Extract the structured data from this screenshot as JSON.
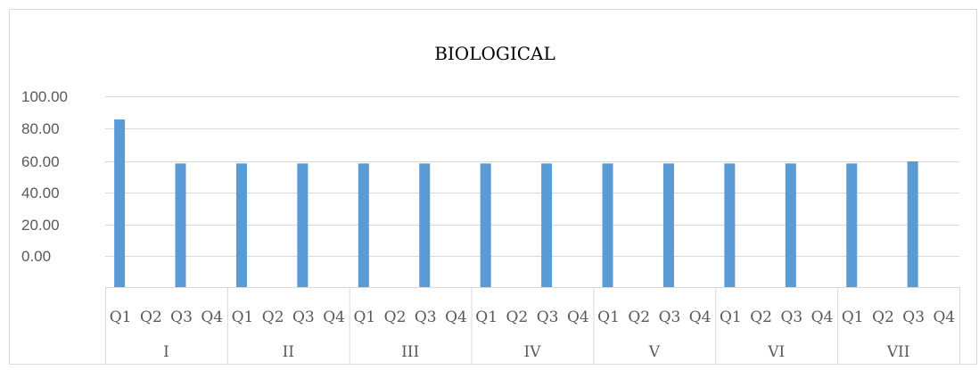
{
  "chart_data": {
    "type": "bar",
    "title": "BIOLOGICAL",
    "xlabel": "",
    "ylabel": "",
    "y_tick_labels": [
      "100.00",
      "80.00",
      "60.00",
      "40.00",
      "20.00",
      "0.00"
    ],
    "groups": [
      {
        "label": "I",
        "quarters": [
          "Q1",
          "Q2",
          "Q3",
          "Q4"
        ]
      },
      {
        "label": "II",
        "quarters": [
          "Q1",
          "Q2",
          "Q3",
          "Q4"
        ]
      },
      {
        "label": "III",
        "quarters": [
          "Q1",
          "Q2",
          "Q3",
          "Q4"
        ]
      },
      {
        "label": "IV",
        "quarters": [
          "Q1",
          "Q2",
          "Q3",
          "Q4"
        ]
      },
      {
        "label": "V",
        "quarters": [
          "Q1",
          "Q2",
          "Q3",
          "Q4"
        ]
      },
      {
        "label": "VI",
        "quarters": [
          "Q1",
          "Q2",
          "Q3",
          "Q4"
        ]
      },
      {
        "label": "VII",
        "quarters": [
          "Q1",
          "Q2",
          "Q3",
          "Q4"
        ]
      }
    ],
    "values": [
      [
        80,
        null,
        59,
        null
      ],
      [
        59,
        null,
        59,
        null
      ],
      [
        59,
        null,
        59,
        null
      ],
      [
        59,
        null,
        59,
        null
      ],
      [
        59,
        null,
        59,
        null
      ],
      [
        59,
        null,
        59,
        null
      ],
      [
        59,
        null,
        60,
        null
      ]
    ],
    "bar_color": "#5b9bd5",
    "grid": true,
    "legend": "none"
  }
}
